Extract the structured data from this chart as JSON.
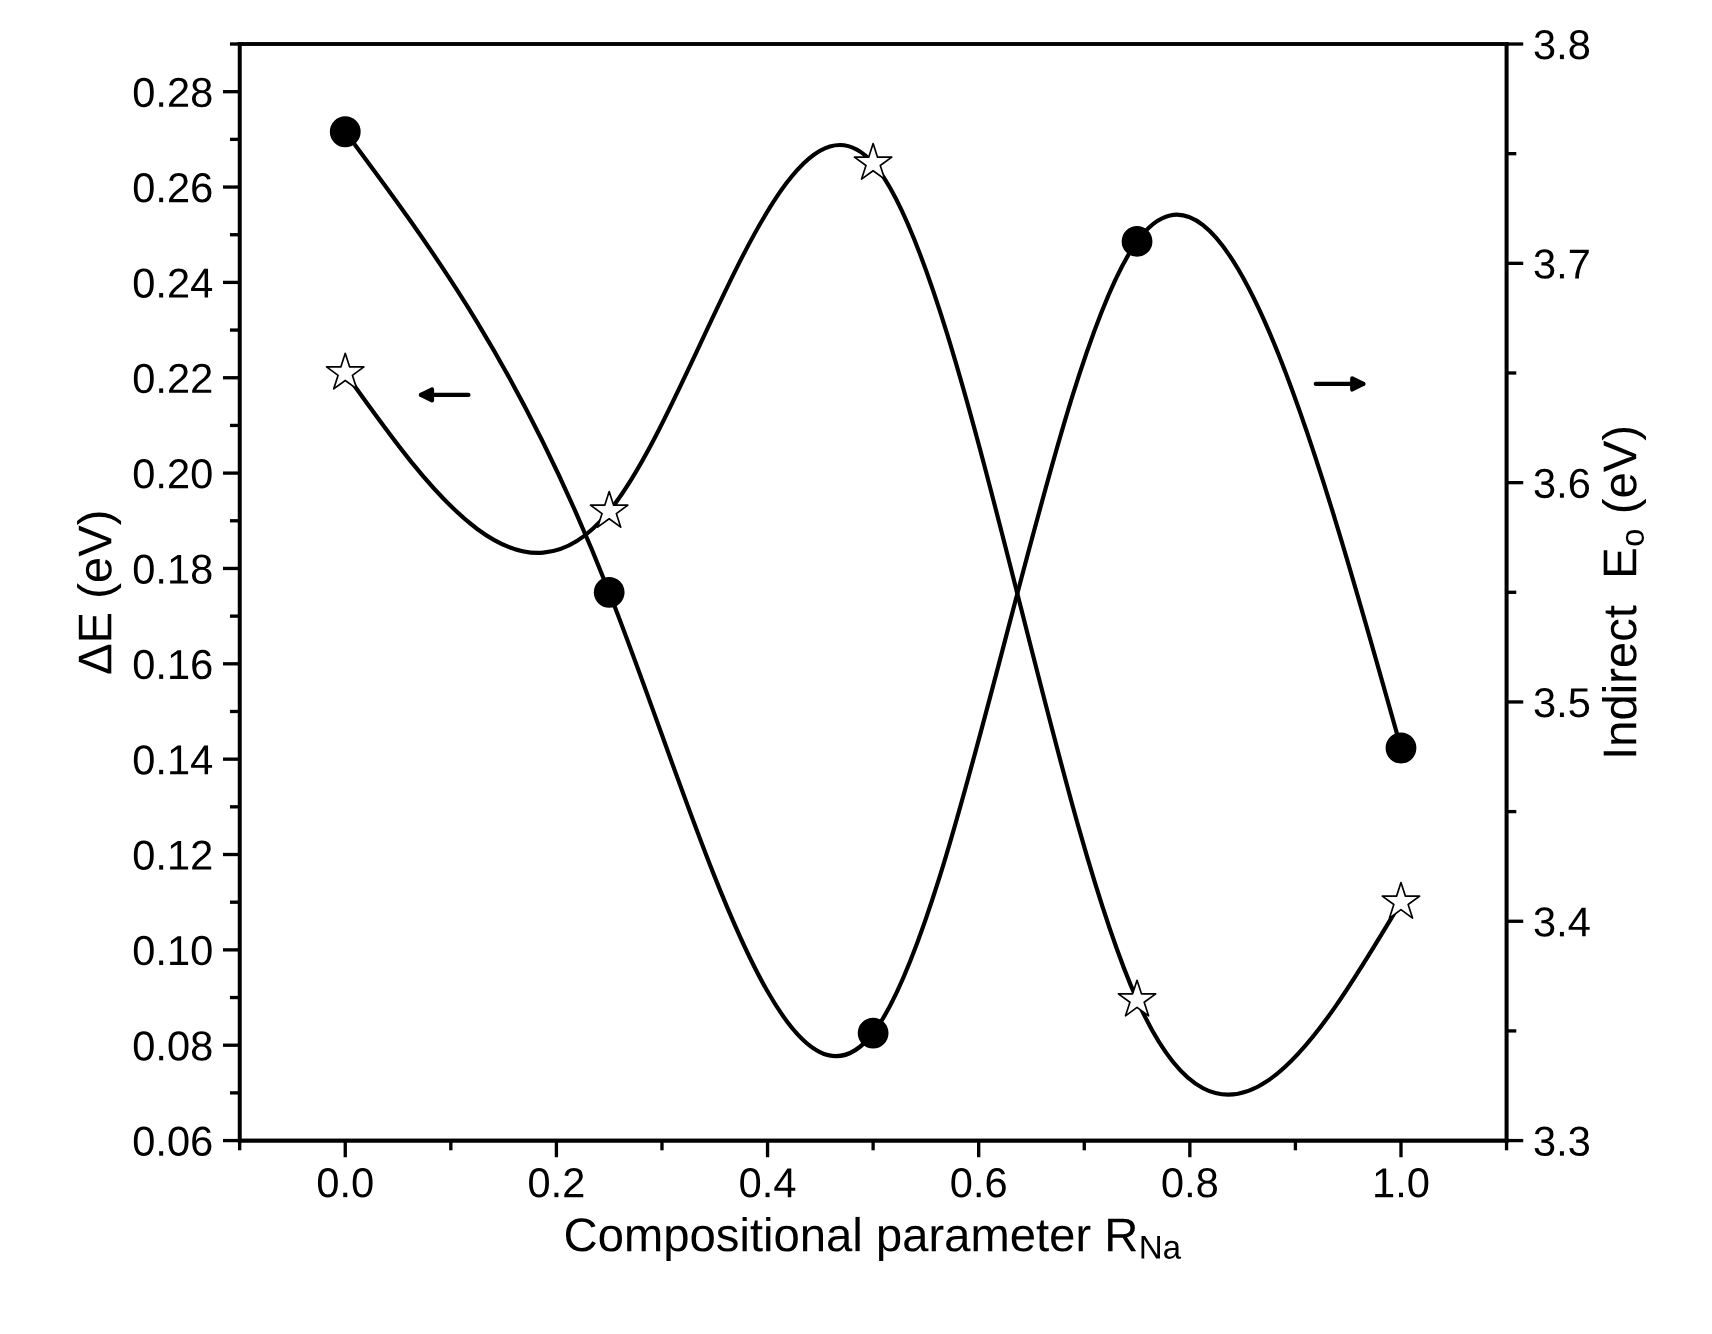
{
  "chart_data": {
    "type": "line",
    "xlabel": "Compositional parameter R$_{Na}$",
    "ylabel": "ΔE (eV)",
    "y2label": "Indirect  E$_{o}$ (eV)",
    "x": [
      0.0,
      0.25,
      0.5,
      0.75,
      1.0
    ],
    "series": [
      {
        "color": "#000000",
        "marker": "star",
        "values": [
          0.221,
          0.192,
          0.265,
          0.0895,
          0.11
        ]
      },
      {
        "color": "#000000",
        "marker": "circle",
        "axis": "y2",
        "values": [
          3.76,
          3.55,
          3.349,
          3.71,
          3.479
        ]
      }
    ],
    "xlim": [
      -0.1,
      1.1
    ],
    "xticks": [
      {
        "value": 0.0,
        "label": "0.0"
      },
      0.2,
      0.4,
      0.6,
      0.8,
      {
        "value": 1.0,
        "label": "1.0"
      }
    ],
    "ylim": [
      0.06,
      0.29
    ],
    "yticks": [
      {
        "value": 0.06,
        "label": "0.06"
      },
      {
        "value": 0.08,
        "label": "0.08"
      },
      {
        "value": 0.1,
        "label": "0.10"
      },
      {
        "value": 0.12,
        "label": "0.12"
      },
      {
        "value": 0.14,
        "label": "0.14"
      },
      {
        "value": 0.16,
        "label": "0.16"
      },
      {
        "value": 0.18,
        "label": "0.18"
      },
      {
        "value": 0.2,
        "label": "0.20"
      },
      {
        "value": 0.22,
        "label": "0.22"
      },
      {
        "value": 0.24,
        "label": "0.24"
      },
      {
        "value": 0.26,
        "label": "0.26"
      },
      {
        "value": 0.28,
        "label": "0.28"
      }
    ],
    "y2lim": [
      3.3,
      3.8
    ],
    "y2ticks": [
      3.3,
      3.4,
      3.5,
      3.6,
      3.7,
      3.8
    ],
    "grid": false,
    "legend": false,
    "line_style": "solid"
  }
}
